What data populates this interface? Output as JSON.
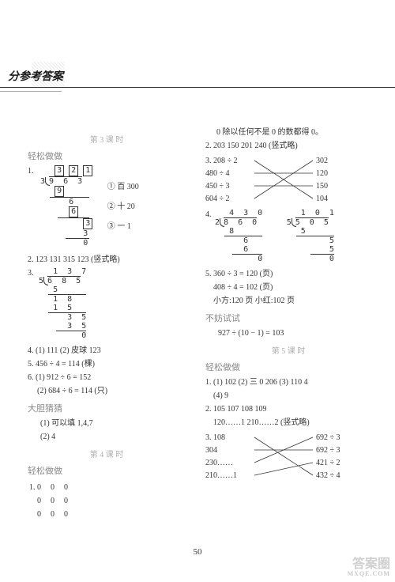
{
  "header": {
    "title": "分参考答案"
  },
  "page_number": "50",
  "lessons": {
    "l3": "第 3 课 时",
    "l4": "第 4 课 时",
    "l5": "第 5 课 时"
  },
  "sections": {
    "easy": "轻松做做",
    "bold": "大胆猜猜",
    "try": "不妨试试"
  },
  "left": {
    "p1": {
      "num": "1.",
      "quotient": [
        "3",
        "2",
        "1"
      ],
      "divisor": "3",
      "dividend": "9  6  3",
      "s1": "9",
      "s2": "6",
      "s3": "6",
      "s4": "3",
      "s5": "3",
      "s6": "0",
      "note1": "① 百 300",
      "note2": "② 十 20",
      "note3": "③ 一 1"
    },
    "p2": {
      "text": "2. 123   131   315   123 (竖式略)"
    },
    "p3": {
      "num": "3.",
      "quotient": "1  3  7",
      "divisor": "5",
      "dividend": "6  8  5",
      "rows": [
        "5",
        "1  8",
        "1  5",
        "3  5",
        "3  5",
        "0"
      ]
    },
    "p4": {
      "text": "4. (1) 111   (2) 皮球   123"
    },
    "p5": {
      "text": "5. 456 ÷ 4 = 114 (棵)"
    },
    "p6a": {
      "text": "6. (1) 912 ÷ 6 = 152"
    },
    "p6b": {
      "text": "(2) 684 ÷ 6 = 114 (只)"
    },
    "bold1": {
      "text": "(1) 可以填 1,4,7"
    },
    "bold2": {
      "text": "(2) 4"
    },
    "zeros": {
      "r1": [
        "1. 0",
        "0",
        "0"
      ],
      "r2": [
        "0",
        "0",
        "0"
      ],
      "r3": [
        "0",
        "0",
        "0"
      ]
    }
  },
  "right": {
    "top": {
      "text": "0 除以任何不是 0 的数都得 0。"
    },
    "p2": {
      "text": "2. 203   150   201   240 (竖式略)"
    },
    "p3": {
      "left_items": [
        "3. 208 ÷ 2",
        "480 ÷ 4",
        "450 ÷ 3",
        "604 ÷ 2"
      ],
      "right_items": [
        "302",
        "120",
        "150",
        "104"
      ],
      "lines": [
        [
          0,
          3
        ],
        [
          1,
          1
        ],
        [
          2,
          2
        ],
        [
          3,
          0
        ]
      ]
    },
    "p4": {
      "num": "4.",
      "d1": {
        "q": "4  3  0",
        "dv": "2",
        "dd": "8  6  0",
        "rows": [
          "8",
          "6",
          "6",
          "0"
        ]
      },
      "d2": {
        "q": "1  0  1",
        "dv": "5",
        "dd": "5  0  5",
        "rows": [
          "5",
          "5",
          "5",
          "0"
        ]
      }
    },
    "p5a": {
      "text": "5. 360 ÷ 3 = 120 (页)"
    },
    "p5b": {
      "text": "408 ÷ 4 = 102 (页)"
    },
    "p5c": {
      "text": "小方:120 页     小红:102 页"
    },
    "try1": {
      "text": "927 ÷ (10 − 1) = 103"
    },
    "l5p1a": {
      "text": "1. (1) 102   (2) 三   0   206   (3) 110   4"
    },
    "l5p1b": {
      "text": "(4) 9"
    },
    "l5p2a": {
      "text": "2. 105   107   108   109"
    },
    "l5p2b": {
      "text": "120……1   210……2 (竖式略)"
    },
    "l5p3": {
      "num": "3.",
      "left_items": [
        "108",
        "304",
        "230……",
        "210……1"
      ],
      "right_items": [
        "692 ÷ 3",
        "692 ÷ 3",
        "421 ÷ 2",
        "432 ÷ 4"
      ],
      "lines": [
        [
          0,
          3
        ],
        [
          1,
          1
        ],
        [
          2,
          0
        ],
        [
          3,
          2
        ]
      ]
    }
  },
  "watermark": {
    "main": "答案圈",
    "sub": "MXQE.COM"
  }
}
